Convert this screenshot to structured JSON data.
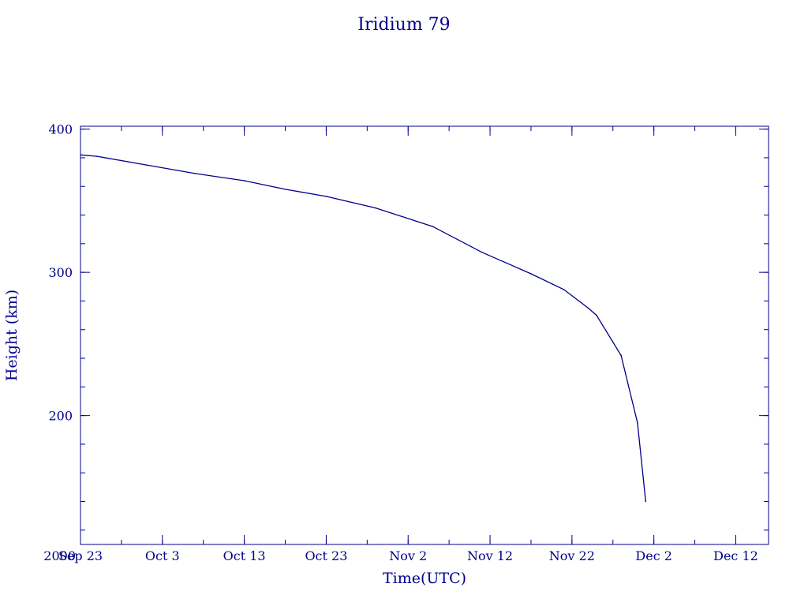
{
  "chart_data": {
    "type": "line",
    "title": "Iridium 79",
    "xlabel": "Time(UTC)",
    "ylabel": "Height (km)",
    "x_axis_prefix": "2000",
    "x_tick_labels": [
      "Sep 23",
      "Oct  3",
      "Oct 13",
      "Oct 23",
      "Nov  2",
      "Nov 12",
      "Nov 22",
      "Dec  2",
      "Dec 12"
    ],
    "x_tick_dates": [
      "2000-09-23",
      "2000-10-03",
      "2000-10-13",
      "2000-10-23",
      "2000-11-02",
      "2000-11-12",
      "2000-11-22",
      "2000-12-02",
      "2000-12-12"
    ],
    "xlim": [
      "2000-09-23",
      "2000-12-16"
    ],
    "y_tick_labels": [
      "400",
      "300",
      "200"
    ],
    "y_ticks": [
      400,
      300,
      200
    ],
    "ylim": [
      110,
      402
    ],
    "grid": false,
    "series": [
      {
        "x": [
          "2000-09-23",
          "2000-09-25",
          "2000-10-01",
          "2000-10-07",
          "2000-10-13",
          "2000-10-18",
          "2000-10-23",
          "2000-10-29",
          "2000-11-05",
          "2000-11-11",
          "2000-11-17",
          "2000-11-21",
          "2000-11-24",
          "2000-11-25",
          "2000-11-28",
          "2000-11-30",
          "2000-12-01"
        ],
        "y": [
          382,
          381,
          375,
          369,
          364,
          358,
          353,
          345,
          332,
          314,
          299,
          288,
          275,
          270,
          242,
          195,
          140
        ]
      }
    ],
    "color": "#00008b"
  }
}
